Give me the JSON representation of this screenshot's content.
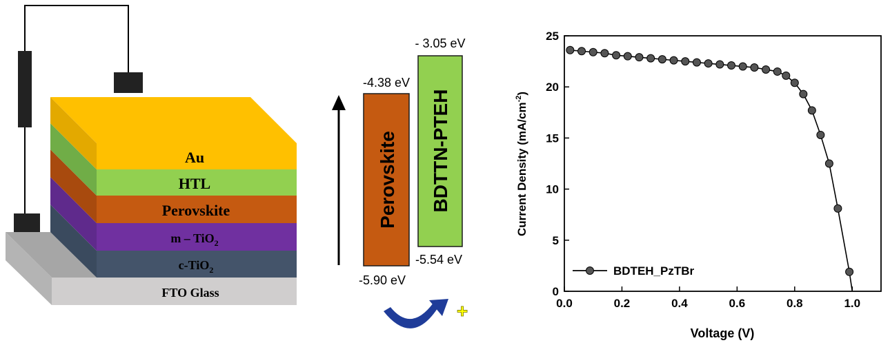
{
  "device_stack": {
    "layers": [
      {
        "label": "Au",
        "color": "#ffc000"
      },
      {
        "label": "HTL",
        "color": "#92d050"
      },
      {
        "label": "Perovskite",
        "color": "#c55a11"
      },
      {
        "label": "m – TiO",
        "sub": "2",
        "color": "#7030a0"
      },
      {
        "label": "c-TiO",
        "sub": "2",
        "color": "#44546a"
      },
      {
        "label": "FTO Glass",
        "color": "#d0cece"
      }
    ]
  },
  "energy_diagram": {
    "perovskite": {
      "label": "Perovskite",
      "top": "-4.38 eV",
      "bottom": "-5.90 eV",
      "color": "#c55a11"
    },
    "htl": {
      "label": "BDTTN-PTEH",
      "top": "- 3.05 eV",
      "bottom": "-5.54 eV",
      "color": "#92d050"
    },
    "hole_symbol": "+"
  },
  "chart_data": {
    "type": "line",
    "xlabel": "Voltage (V)",
    "ylabel": "Current Density (mA/cm",
    "ylabel_sup": "-2",
    "ylabel_end": ")",
    "xlim": [
      0.0,
      1.1
    ],
    "ylim": [
      0,
      25
    ],
    "xticks": [
      "0.0",
      "0.2",
      "0.4",
      "0.6",
      "0.8",
      "1.0"
    ],
    "yticks": [
      "0",
      "5",
      "10",
      "15",
      "20",
      "25"
    ],
    "legend": "top-left-bottom",
    "series": [
      {
        "name": "BDTEH_PzTBr",
        "color": "#000000",
        "x": [
          0.02,
          0.06,
          0.1,
          0.14,
          0.18,
          0.22,
          0.26,
          0.3,
          0.34,
          0.38,
          0.42,
          0.46,
          0.5,
          0.54,
          0.58,
          0.62,
          0.66,
          0.7,
          0.74,
          0.77,
          0.8,
          0.83,
          0.86,
          0.89,
          0.92,
          0.95,
          0.99
        ],
        "y": [
          23.6,
          23.5,
          23.4,
          23.3,
          23.1,
          23.0,
          22.9,
          22.8,
          22.7,
          22.6,
          22.5,
          22.4,
          22.3,
          22.2,
          22.1,
          22.0,
          21.9,
          21.7,
          21.5,
          21.1,
          20.4,
          19.3,
          17.7,
          15.3,
          12.5,
          8.1,
          1.9
        ]
      }
    ]
  }
}
